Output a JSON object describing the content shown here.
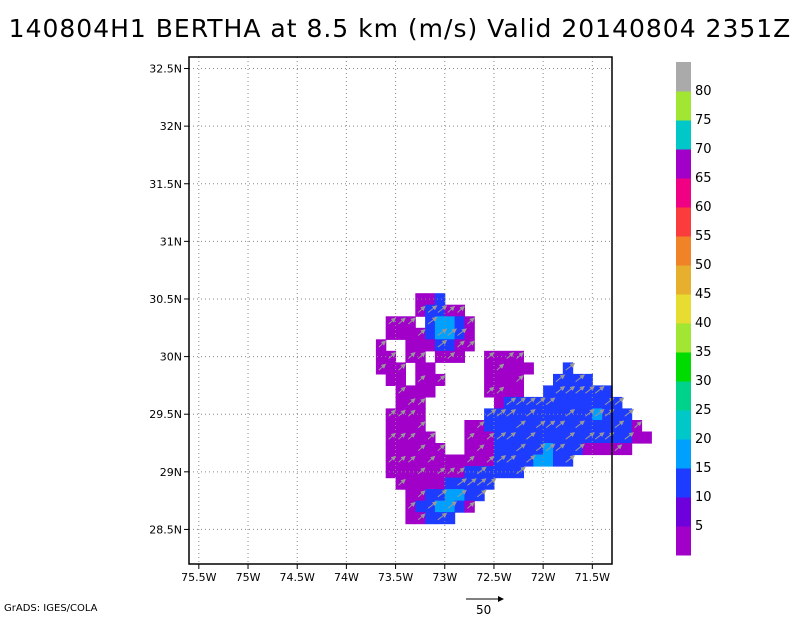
{
  "title": "140804H1 BERTHA at 8.5 km (m/s) Valid 20140804 2351Z",
  "credit": "GrADS: IGES/COLA",
  "reference_vector_label": "50",
  "chart_data": {
    "type": "heatmap",
    "title": "140804H1 BERTHA at 8.5 km (m/s) Valid 20140804 2351Z",
    "units": "m/s",
    "xlim": [
      -75.6,
      -71.3
    ],
    "ylim": [
      28.2,
      32.6
    ],
    "x_ticks": [
      -75.5,
      -75,
      -74.5,
      -74,
      -73.5,
      -73,
      -72.5,
      -72,
      -71.5
    ],
    "x_tick_labels": [
      "75.5W",
      "75W",
      "74.5W",
      "74W",
      "73.5W",
      "73W",
      "72.5W",
      "72W",
      "71.5W"
    ],
    "y_ticks": [
      28.5,
      29,
      29.5,
      30,
      30.5,
      31,
      31.5,
      32,
      32.5
    ],
    "y_tick_labels": [
      "28.5N",
      "29N",
      "29.5N",
      "30N",
      "30.5N",
      "31N",
      "31.5N",
      "32N",
      "32.5N"
    ],
    "grid": true,
    "colorbar": {
      "placement": "right",
      "colors": [
        "#a000c8",
        "#6e00dc",
        "#1e3cff",
        "#00a0ff",
        "#00c8c8",
        "#00d28c",
        "#00dc00",
        "#a0e632",
        "#e6dc32",
        "#e6af2d",
        "#f08228",
        "#fa3c3c",
        "#f00082",
        "#a000c8",
        "#00c8c8",
        "#a0e632",
        "#aaaaaa"
      ],
      "labels": [
        "5",
        "10",
        "15",
        "20",
        "25",
        "30",
        "35",
        "40",
        "45",
        "50",
        "55",
        "60",
        "65",
        "70",
        "75",
        "80"
      ]
    },
    "cell_size_deg": [
      0.1,
      0.1
    ],
    "wind_field_rows": [
      {
        "lat": 30.5,
        "lon_start": -73.25,
        "classes": "aab"
      },
      {
        "lat": 30.4,
        "lon_start": -73.25,
        "classes": "abbaa"
      },
      {
        "lat": 30.3,
        "lon_start": -73.55,
        "classes": "aaa.bccba"
      },
      {
        "lat": 30.2,
        "lon_start": -73.55,
        "classes": "aaaabccba"
      },
      {
        "lat": 30.1,
        "lon_start": -73.65,
        "classes": "a..aaabbaa"
      },
      {
        "lat": 30.0,
        "lon_start": -73.65,
        "classes": "aa.aa.aaa..aaaa"
      },
      {
        "lat": 29.9,
        "lon_start": -73.65,
        "classes": "aaa.aa.....aaaaa...b"
      },
      {
        "lat": 29.8,
        "lon_start": -73.55,
        "classes": "aa.aaa....aaaa...bbbb"
      },
      {
        "lat": 29.7,
        "lon_start": -73.45,
        "classes": "aaaa.....aaaa..bbbbbbb"
      },
      {
        "lat": 29.6,
        "lon_start": -73.45,
        "classes": "aaa.......abbbbbbbbbbbb"
      },
      {
        "lat": 29.5,
        "lon_start": -73.55,
        "classes": "aaaa......bbbbbbbbbbbcbbb"
      },
      {
        "lat": 29.4,
        "lon_start": -73.55,
        "classes": "aaaa....aabbbbbbbbbbbbbbba"
      },
      {
        "lat": 29.3,
        "lon_start": -73.55,
        "classes": "aaaaa...aaabbbbbbbbbbbbbbaa"
      },
      {
        "lat": 29.2,
        "lon_start": -73.55,
        "classes": "aaaaaa..aaabbbbbcbbbaaaaa"
      },
      {
        "lat": 29.1,
        "lon_start": -73.55,
        "classes": "aaaaaaaaaaabbbbccbb"
      },
      {
        "lat": 29.0,
        "lon_start": -73.55,
        "classes": "aaaaaaaabbbbbb"
      },
      {
        "lat": 28.9,
        "lon_start": -73.45,
        "classes": "aaaaabbbbb"
      },
      {
        "lat": 28.8,
        "lon_start": -73.35,
        "classes": "aabbccbb"
      },
      {
        "lat": 28.7,
        "lon_start": -73.35,
        "classes": "abbccba"
      },
      {
        "lat": 28.6,
        "lon_start": -73.35,
        "classes": "aabbb"
      }
    ],
    "wind_field_class_colors": {
      "a": "#a000c8",
      "b": "#1e3cff",
      "c": "#00a0ff"
    },
    "wind_vectors_direction": "southwest-to-northeast",
    "reference_vector": {
      "speed": 50,
      "units": "m/s"
    }
  }
}
